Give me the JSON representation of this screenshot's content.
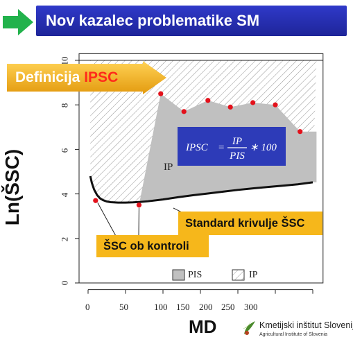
{
  "header": {
    "title": "Nov kazalec problematike SM"
  },
  "definition_banner": {
    "label": "Definicija",
    "accent": "IPSC"
  },
  "formula": {
    "lhs": "IPSC",
    "numerator": "IP",
    "denominator": "PIS",
    "multiplier": "∗ 100"
  },
  "callouts": {
    "standard_curve": "Standard krivulje ŠSC",
    "control_scc": "ŠSC ob kontroli"
  },
  "plot_labels": {
    "ip_area": "IP"
  },
  "legend": {
    "pis": "PIS",
    "ip": "IP"
  },
  "axes": {
    "ylabel": "Ln(ŠSC)",
    "xlabel": "MD",
    "yticks": [
      "0",
      "2",
      "4",
      "6",
      "8",
      "10"
    ],
    "xticks": [
      "0",
      "50",
      "100",
      "150",
      "200",
      "250",
      "300"
    ]
  },
  "logo": {
    "name": "Kmetijski inštitut Slovenije",
    "sub": "Agricultural Institute of Slovenia"
  },
  "colors": {
    "title_bg": "#2530b8",
    "callout": "#f6b71b",
    "accent_red": "#ff2a1a",
    "arrow_green": "#22b24c",
    "pis_fill": "#c0c0c0",
    "points": "#e3111b"
  },
  "chart_data": {
    "type": "area",
    "xlabel": "MD",
    "ylabel": "Ln(ŠSC)",
    "xlim": [
      0,
      310
    ],
    "ylim": [
      0,
      10
    ],
    "standard_curve": {
      "x": [
        3,
        5,
        8,
        12,
        16,
        20,
        25,
        30,
        40,
        50,
        60,
        70,
        80,
        100,
        120,
        140,
        160,
        180,
        200,
        220,
        240,
        260,
        280,
        300
      ],
      "y": [
        4.8,
        4.5,
        4.2,
        3.95,
        3.8,
        3.72,
        3.66,
        3.63,
        3.61,
        3.61,
        3.62,
        3.64,
        3.67,
        3.75,
        3.85,
        3.94,
        4.02,
        4.1,
        4.18,
        4.25,
        4.31,
        4.37,
        4.43,
        4.52
      ]
    },
    "control_points": {
      "x": [
        10,
        68,
        97,
        128,
        160,
        190,
        220,
        250,
        283
      ],
      "y": [
        3.7,
        3.5,
        8.5,
        7.7,
        8.2,
        7.9,
        8.1,
        8.0,
        6.8
      ]
    },
    "ip_polyline": {
      "x": [
        68,
        97,
        128,
        160,
        190,
        220,
        250,
        283,
        305
      ],
      "y": [
        3.5,
        8.5,
        7.7,
        8.2,
        7.9,
        8.1,
        8.0,
        6.8,
        6.8
      ]
    },
    "pis_upper": 10
  }
}
